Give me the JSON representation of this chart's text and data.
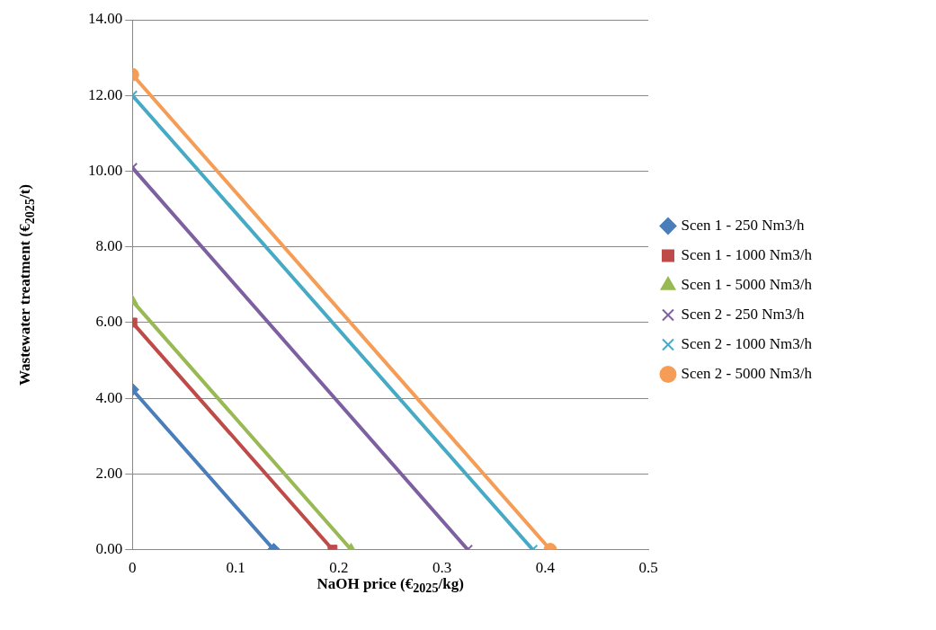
{
  "chart_data": {
    "type": "line",
    "xlabel": "NaOH price (€$_{2025}$/kg)",
    "ylabel": "Wastewater treatment  (€$_{2025}$/t)",
    "series": [
      {
        "name": "Scen 1 - 250 Nm3/h",
        "color": "#4a7ebb",
        "marker": "diamond",
        "x": [
          0,
          0.137
        ],
        "values": [
          4.23,
          0
        ]
      },
      {
        "name": "Scen 1 - 1000 Nm3/h",
        "color": "#be4b48",
        "marker": "square",
        "x": [
          0,
          0.194
        ],
        "values": [
          6.0,
          0
        ]
      },
      {
        "name": "Scen 1 - 5000 Nm3/h",
        "color": "#98b954",
        "marker": "triangle",
        "x": [
          0,
          0.212
        ],
        "values": [
          6.57,
          0
        ]
      },
      {
        "name": "Scen 2 - 250 Nm3/h",
        "color": "#7d60a0",
        "marker": "cross",
        "x": [
          0,
          0.325
        ],
        "values": [
          10.09,
          0
        ]
      },
      {
        "name": "Scen 2 - 1000 Nm3/h",
        "color": "#46aac5",
        "marker": "cross",
        "x": [
          0,
          0.388
        ],
        "values": [
          12.0,
          0
        ]
      },
      {
        "name": "Scen 2 - 5000 Nm3/h",
        "color": "#f59d56",
        "marker": "circle",
        "x": [
          0,
          0.405
        ],
        "values": [
          12.55,
          0
        ]
      }
    ],
    "xlim": [
      0,
      0.5
    ],
    "xticks": [
      0,
      0.1,
      0.2,
      0.3,
      0.4,
      0.5
    ],
    "ylim": [
      0,
      14
    ],
    "yticks": [
      {
        "value": 0,
        "label": "0.00"
      },
      {
        "value": 2,
        "label": "2.00"
      },
      {
        "value": 4,
        "label": "4.00"
      },
      {
        "value": 6,
        "label": "6.00"
      },
      {
        "value": 8,
        "label": "8.00"
      },
      {
        "value": 10,
        "label": "10.00"
      },
      {
        "value": 12,
        "label": "12.00"
      },
      {
        "value": 14,
        "label": "14.00"
      }
    ],
    "grid": "y",
    "legend": "right",
    "line_style": "solid"
  }
}
